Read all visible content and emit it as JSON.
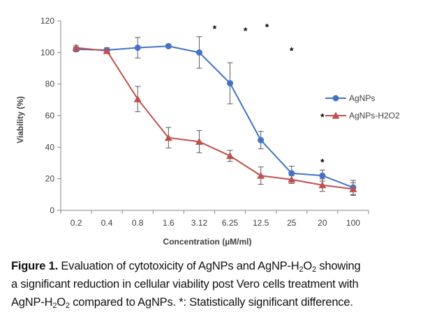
{
  "chart_data": {
    "type": "line",
    "categories": [
      "0.2",
      "0.4",
      "0.8",
      "1.6",
      "3.12",
      "6.25",
      "12.5",
      "25",
      "20",
      "100"
    ],
    "xlabel": "Concentration (µM/ml)",
    "ylabel": "Viability (%)",
    "ylim": [
      0,
      120
    ],
    "yticks": [
      0,
      20,
      40,
      60,
      80,
      100,
      120
    ],
    "grid": false,
    "legend_position": "right",
    "series": [
      {
        "name": "AgNPs",
        "color": "#4472C4",
        "marker": "circle",
        "values": [
          102,
          101.5,
          103,
          104,
          100,
          80.5,
          44.5,
          23.5,
          22,
          14.5
        ],
        "errors": [
          1.5,
          1.5,
          6.5,
          1.0,
          10,
          13,
          5.5,
          4.5,
          3.5,
          4.5
        ]
      },
      {
        "name": "AgNPs-H2O2",
        "color": "#C0504D",
        "marker": "triangle",
        "values": [
          103,
          101,
          70.5,
          46,
          43.5,
          34.5,
          22,
          19.5,
          16,
          13.5
        ],
        "errors": [
          1.5,
          1.5,
          8,
          6.5,
          7,
          3.5,
          5.5,
          2.5,
          4,
          4
        ]
      }
    ],
    "annotations": [
      {
        "text": "*",
        "x_index": 4.5,
        "y": 117
      },
      {
        "text": "*",
        "x_index": 5.5,
        "y": 115.5
      },
      {
        "text": "*",
        "x_index": 6.2,
        "y": 118
      },
      {
        "text": "*",
        "x_index": 7.0,
        "y": 103
      },
      {
        "text": "*",
        "x_index": 8.0,
        "y": 61
      },
      {
        "text": "*",
        "x_index": 8.0,
        "y": 32.5
      }
    ]
  },
  "caption": {
    "label": "Figure 1.",
    "line1_text": " Evaluation of cytotoxicity of AgNPs and AgNP-H",
    "sub_a": "2",
    "mid_o": "O",
    "sub_b": "2",
    "line1_end": " showing",
    "line2": "a significant reduction in cellular viability post Vero cells treatment with",
    "line3_start": "AgNP-H",
    "sub_c": "2",
    "mid_o2": "O",
    "sub_d": "2",
    "line3_end": " compared to AgNPs. *: Statistically significant difference."
  }
}
